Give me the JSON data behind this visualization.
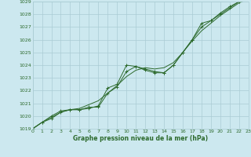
{
  "xlabel": "Graphe pression niveau de la mer (hPa)",
  "hours": [
    0,
    1,
    2,
    3,
    4,
    5,
    6,
    7,
    8,
    9,
    10,
    11,
    12,
    13,
    14,
    15,
    16,
    17,
    18,
    19,
    20,
    21,
    22,
    23
  ],
  "pressure_marked1": [
    1019.0,
    1019.5,
    1019.8,
    1020.3,
    1020.5,
    1020.5,
    1020.6,
    1020.8,
    1022.2,
    1022.5,
    1024.0,
    1023.9,
    1023.6,
    1023.4,
    1023.4,
    1024.0,
    1025.0,
    1026.0,
    1027.3,
    1027.5,
    1028.1,
    1028.6,
    1029.0,
    1029.2
  ],
  "pressure_marked2": [
    1019.0,
    1019.5,
    1020.0,
    1020.4,
    1020.5,
    1020.5,
    1020.7,
    1020.7,
    1021.8,
    1022.3,
    1023.5,
    1023.9,
    1023.7,
    1023.5,
    1023.4,
    1024.0,
    1025.0,
    1026.0,
    1027.0,
    1027.5,
    1028.0,
    1028.5,
    1029.0,
    1029.2
  ],
  "pressure_smooth": [
    1019.0,
    1019.5,
    1019.9,
    1020.3,
    1020.5,
    1020.6,
    1020.9,
    1021.2,
    1021.8,
    1022.4,
    1023.1,
    1023.6,
    1023.8,
    1023.7,
    1023.8,
    1024.2,
    1025.0,
    1025.9,
    1026.7,
    1027.3,
    1027.9,
    1028.4,
    1028.9,
    1029.2
  ],
  "line_color": "#2d6a2d",
  "bg_color": "#cce8ef",
  "grid_color": "#aaccd4",
  "text_color": "#2d6a2d",
  "ylim": [
    1019,
    1029
  ],
  "xlim": [
    0,
    23
  ],
  "yticks": [
    1019,
    1020,
    1021,
    1022,
    1023,
    1024,
    1025,
    1026,
    1027,
    1028,
    1029
  ],
  "xticks": [
    0,
    1,
    2,
    3,
    4,
    5,
    6,
    7,
    8,
    9,
    10,
    11,
    12,
    13,
    14,
    15,
    16,
    17,
    18,
    19,
    20,
    21,
    22,
    23
  ]
}
